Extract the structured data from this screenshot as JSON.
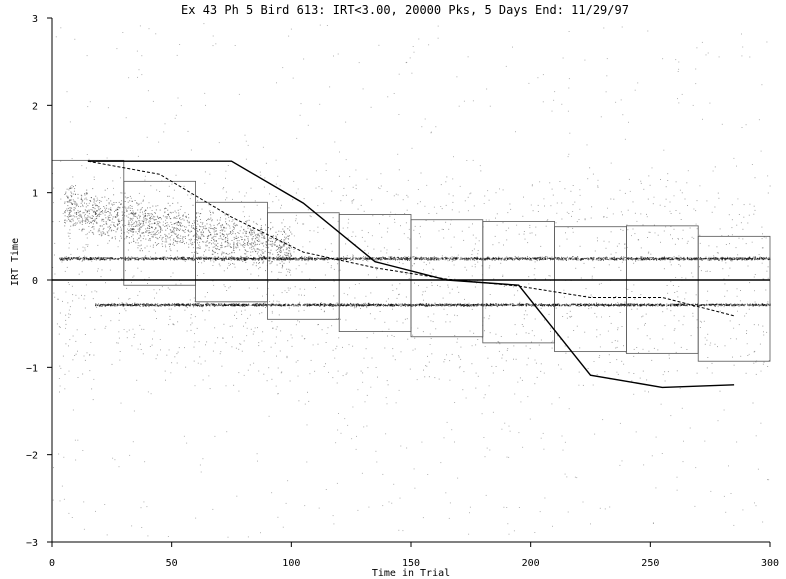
{
  "chart_data": {
    "type": "scatter",
    "title": "Ex 43 Ph 5 Bird 613: IRT<3.00, 20000 Pks, 5 Days End: 11/29/97",
    "xlabel": "Time in Trial",
    "ylabel": "IRT Time",
    "xlim": [
      0,
      300
    ],
    "ylim": [
      -3,
      3
    ],
    "xticks": [
      0,
      50,
      100,
      150,
      200,
      250,
      300
    ],
    "yticks": [
      -3,
      -2,
      -1,
      0,
      1,
      2,
      3
    ],
    "xtick_labels": [
      "0",
      "50",
      "100",
      "150",
      "200",
      "250",
      "300"
    ],
    "ytick_labels": [
      "−3",
      "−2",
      "−1",
      "0",
      "1",
      "2",
      "3"
    ],
    "grid": false,
    "legend": "none",
    "zero_line": true,
    "boxes": [
      {
        "x0": 0,
        "x1": 30,
        "top": 1.37,
        "bottom": 0.0
      },
      {
        "x0": 30,
        "x1": 60,
        "top": 1.13,
        "bottom": -0.06
      },
      {
        "x0": 60,
        "x1": 90,
        "top": 0.89,
        "bottom": -0.25
      },
      {
        "x0": 90,
        "x1": 120,
        "top": 0.77,
        "bottom": -0.45
      },
      {
        "x0": 120,
        "x1": 150,
        "top": 0.75,
        "bottom": -0.59
      },
      {
        "x0": 150,
        "x1": 180,
        "top": 0.69,
        "bottom": -0.65
      },
      {
        "x0": 180,
        "x1": 210,
        "top": 0.67,
        "bottom": -0.72
      },
      {
        "x0": 210,
        "x1": 240,
        "top": 0.61,
        "bottom": -0.82
      },
      {
        "x0": 240,
        "x1": 270,
        "top": 0.62,
        "bottom": -0.84
      },
      {
        "x0": 270,
        "x1": 300,
        "top": 0.5,
        "bottom": -0.93
      }
    ],
    "series": [
      {
        "style": "solid",
        "x": [
          15,
          75,
          105,
          135,
          165,
          195,
          225,
          255,
          285
        ],
        "y": [
          1.36,
          1.36,
          0.88,
          0.21,
          0.0,
          -0.06,
          -1.09,
          -1.23,
          -1.2
        ]
      },
      {
        "style": "dashed",
        "x": [
          15,
          45,
          75,
          105,
          135,
          165,
          195,
          225,
          255,
          285
        ],
        "y": [
          1.36,
          1.21,
          0.72,
          0.32,
          0.14,
          0.01,
          -0.07,
          -0.2,
          -0.2,
          -0.41
        ]
      }
    ],
    "scatter_bands": [
      {
        "y": 0.25,
        "spread": 0.03,
        "density": "heavy"
      },
      {
        "y": -0.28,
        "spread": 0.025,
        "density": "heavy"
      }
    ]
  }
}
